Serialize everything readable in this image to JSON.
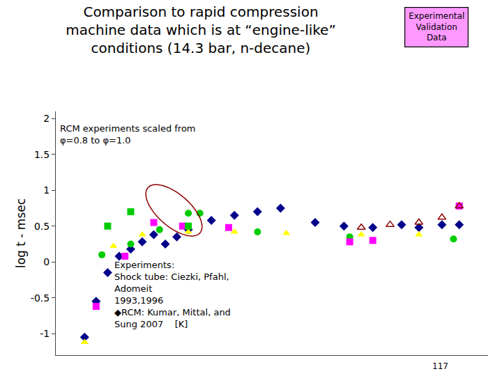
{
  "chart_data": {
    "type": "scatter",
    "title": "Comparison to rapid compression\nmachine data which is at “engine-like”\nconditions (14.3 bar, n-decane)",
    "ylabel": "log t - msec",
    "xlim": [
      0.25,
      1.0
    ],
    "ylim": [
      -1.3,
      2.1
    ],
    "yticks": [
      -1,
      -0.5,
      0,
      0.5,
      1,
      1.5,
      2
    ],
    "grid": false,
    "tick_labels": "y",
    "series": [
      {
        "color": "#00008B",
        "marker": "diamond",
        "x": [
          0.3,
          0.32,
          0.34,
          0.36,
          0.38,
          0.4,
          0.42,
          0.44,
          0.46,
          0.48,
          0.52,
          0.56,
          0.6,
          0.64,
          0.7,
          0.75,
          0.8,
          0.85,
          0.88,
          0.92,
          0.95
        ],
        "values": [
          -1.05,
          -0.55,
          -0.15,
          0.08,
          0.18,
          0.28,
          0.38,
          0.25,
          0.35,
          0.45,
          0.58,
          0.65,
          0.7,
          0.75,
          0.55,
          0.5,
          0.48,
          0.52,
          0.48,
          0.52,
          0.52
        ]
      },
      {
        "color": "#00CC00",
        "marker": "circle",
        "x": [
          0.33,
          0.38,
          0.43,
          0.48,
          0.5,
          0.6,
          0.76,
          0.94
        ],
        "values": [
          0.1,
          0.25,
          0.45,
          0.68,
          0.68,
          0.42,
          0.35,
          0.32
        ]
      },
      {
        "color": "#FF00FF",
        "marker": "square",
        "x": [
          0.32,
          0.37,
          0.42,
          0.47,
          0.55,
          0.76,
          0.8,
          0.95
        ],
        "values": [
          -0.62,
          0.08,
          0.55,
          0.5,
          0.48,
          0.28,
          0.3,
          0.78
        ]
      },
      {
        "color": "#FFFF00",
        "marker": "triangle-up",
        "x": [
          0.3,
          0.35,
          0.4,
          0.48,
          0.56,
          0.65,
          0.78,
          0.88
        ],
        "values": [
          -1.12,
          0.22,
          0.38,
          0.42,
          0.42,
          0.4,
          0.38,
          0.38
        ]
      },
      {
        "color": "#00CC00",
        "marker": "square",
        "x": [
          0.34,
          0.38,
          0.48
        ],
        "values": [
          0.5,
          0.7,
          0.5
        ]
      },
      {
        "color": "#8B0000",
        "marker": "triangle-up-open",
        "x": [
          0.78,
          0.83,
          0.88,
          0.92,
          0.95
        ],
        "values": [
          0.48,
          0.52,
          0.55,
          0.62,
          0.78
        ]
      }
    ],
    "ellipse": {
      "x": 0.455,
      "y": 0.72,
      "width": 0.075,
      "height": 0.72,
      "angle": 5,
      "color": "#8B0000"
    },
    "annotations": [
      "RCM experiments scaled from\nφ=0.8 to φ=1.0",
      "Experiments:\nShock tube: Ciezki, Pfahl,\nAdomeit\n1993,1996\n◆RCM: Kumar, Mittal, and\nSung 2007    [K]"
    ],
    "box": {
      "text": "Experimental\nValidation\nData",
      "color": "#FF99FF"
    },
    "page_number": "117"
  }
}
